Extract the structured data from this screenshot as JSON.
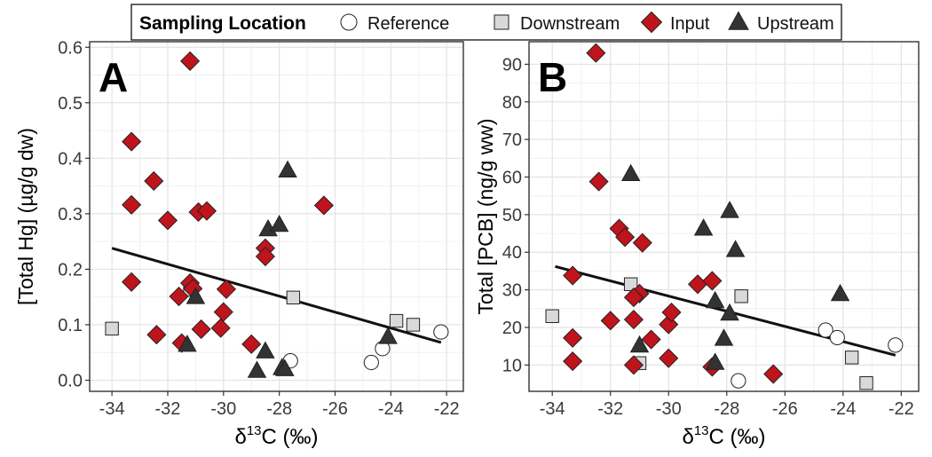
{
  "legend": {
    "title": "Sampling Location",
    "items": [
      {
        "name": "Reference",
        "shape": "circle",
        "fill": "#ffffff"
      },
      {
        "name": "Downstream",
        "shape": "square",
        "fill": "#d9d9d9"
      },
      {
        "name": "Input",
        "shape": "diamond",
        "fill": "#c0141c"
      },
      {
        "name": "Upstream",
        "shape": "triangle",
        "fill": "#333333"
      }
    ]
  },
  "chart_data": [
    {
      "type": "scatter",
      "panel_label": "A",
      "title": "",
      "xlabel_base": "δ",
      "xlabel_sup": "13",
      "xlabel_rest": "C (‰)",
      "ylabel": "[Total Hg] (µg/g dw)",
      "xlim": [
        -34.8,
        -21.4
      ],
      "ylim": [
        -0.02,
        0.61
      ],
      "xticks": [
        -34,
        -32,
        -30,
        -28,
        -26,
        -24,
        -22
      ],
      "xtick_labels": [
        "-34",
        "-32",
        "-30",
        "-28",
        "-26",
        "-24",
        "-22"
      ],
      "yticks": [
        0.0,
        0.1,
        0.2,
        0.3,
        0.4,
        0.5,
        0.6
      ],
      "ytick_labels": [
        "0.0",
        "0.1",
        "0.2",
        "0.3",
        "0.4",
        "0.5",
        "0.6"
      ],
      "grid": true,
      "fit_line": {
        "x": [
          -34.0,
          -22.2
        ],
        "y": [
          0.238,
          0.068
        ]
      },
      "series": [
        {
          "name": "Reference",
          "points": [
            [
              -27.6,
              0.035
            ],
            [
              -24.7,
              0.032
            ],
            [
              -24.3,
              0.057
            ],
            [
              -22.2,
              0.087
            ]
          ]
        },
        {
          "name": "Downstream",
          "points": [
            [
              -34.0,
              0.093
            ],
            [
              -31.2,
              0.163
            ],
            [
              -27.5,
              0.149
            ],
            [
              -23.8,
              0.107
            ],
            [
              -23.2,
              0.1
            ]
          ]
        },
        {
          "name": "Input",
          "points": [
            [
              -31.2,
              0.575
            ],
            [
              -33.3,
              0.43
            ],
            [
              -32.5,
              0.359
            ],
            [
              -33.3,
              0.316
            ],
            [
              -32.0,
              0.288
            ],
            [
              -30.9,
              0.303
            ],
            [
              -30.6,
              0.305
            ],
            [
              -26.4,
              0.315
            ],
            [
              -28.5,
              0.238
            ],
            [
              -28.5,
              0.223
            ],
            [
              -33.3,
              0.177
            ],
            [
              -31.2,
              0.175
            ],
            [
              -31.1,
              0.165
            ],
            [
              -31.6,
              0.151
            ],
            [
              -29.9,
              0.164
            ],
            [
              -30.0,
              0.123
            ],
            [
              -30.8,
              0.092
            ],
            [
              -30.1,
              0.094
            ],
            [
              -32.4,
              0.082
            ],
            [
              -31.5,
              0.067
            ],
            [
              -29.0,
              0.065
            ]
          ]
        },
        {
          "name": "Upstream",
          "points": [
            [
              -27.7,
              0.378
            ],
            [
              -28.4,
              0.272
            ],
            [
              -28.0,
              0.28
            ],
            [
              -31.0,
              0.15
            ],
            [
              -31.3,
              0.064
            ],
            [
              -28.5,
              0.052
            ],
            [
              -28.8,
              0.017
            ],
            [
              -27.9,
              0.022
            ],
            [
              -27.8,
              0.02
            ],
            [
              -24.1,
              0.078
            ]
          ]
        }
      ]
    },
    {
      "type": "scatter",
      "panel_label": "B",
      "title": "",
      "xlabel_base": "δ",
      "xlabel_sup": "13",
      "xlabel_rest": "C (‰)",
      "ylabel": "Total [PCB] (ng/g ww)",
      "xlim": [
        -34.8,
        -21.4
      ],
      "ylim": [
        3,
        96
      ],
      "xticks": [
        -34,
        -32,
        -30,
        -28,
        -26,
        -24,
        -22
      ],
      "xtick_labels": [
        "-34",
        "-32",
        "-30",
        "-28",
        "-26",
        "-24",
        "-22"
      ],
      "yticks": [
        10,
        20,
        30,
        40,
        50,
        60,
        70,
        80,
        90
      ],
      "ytick_labels": [
        "10",
        "20",
        "30",
        "40",
        "50",
        "60",
        "70",
        "80",
        "90"
      ],
      "grid": true,
      "fit_line": {
        "x": [
          -33.9,
          -22.2
        ],
        "y": [
          36.2,
          12.6
        ]
      },
      "series": [
        {
          "name": "Reference",
          "points": [
            [
              -27.6,
              5.8
            ],
            [
              -24.6,
              19.3
            ],
            [
              -24.2,
              17.3
            ],
            [
              -22.2,
              15.3
            ]
          ]
        },
        {
          "name": "Downstream",
          "points": [
            [
              -34.0,
              23.0
            ],
            [
              -31.3,
              31.5
            ],
            [
              -31.0,
              10.5
            ],
            [
              -27.5,
              28.3
            ],
            [
              -23.7,
              12.0
            ],
            [
              -23.2,
              5.2
            ]
          ]
        },
        {
          "name": "Input",
          "points": [
            [
              -32.5,
              93.0
            ],
            [
              -32.4,
              58.8
            ],
            [
              -31.7,
              46.3
            ],
            [
              -31.5,
              44.0
            ],
            [
              -30.9,
              42.5
            ],
            [
              -33.3,
              33.8
            ],
            [
              -32.0,
              21.8
            ],
            [
              -33.3,
              17.2
            ],
            [
              -33.3,
              11.0
            ],
            [
              -31.2,
              22.1
            ],
            [
              -31.0,
              29.0
            ],
            [
              -31.2,
              28.0
            ],
            [
              -30.6,
              16.8
            ],
            [
              -30.0,
              20.8
            ],
            [
              -29.9,
              24.0
            ],
            [
              -30.0,
              11.8
            ],
            [
              -31.2,
              10.0
            ],
            [
              -29.0,
              31.5
            ],
            [
              -28.5,
              32.4
            ],
            [
              -28.5,
              9.5
            ],
            [
              -26.4,
              7.6
            ]
          ]
        },
        {
          "name": "Upstream",
          "points": [
            [
              -31.3,
              60.8
            ],
            [
              -28.8,
              46.3
            ],
            [
              -27.9,
              51.0
            ],
            [
              -27.7,
              40.6
            ],
            [
              -28.4,
              27.0
            ],
            [
              -27.9,
              23.7
            ],
            [
              -28.1,
              17.0
            ],
            [
              -31.0,
              15.2
            ],
            [
              -28.4,
              10.6
            ],
            [
              -24.1,
              28.9
            ]
          ]
        }
      ]
    }
  ]
}
